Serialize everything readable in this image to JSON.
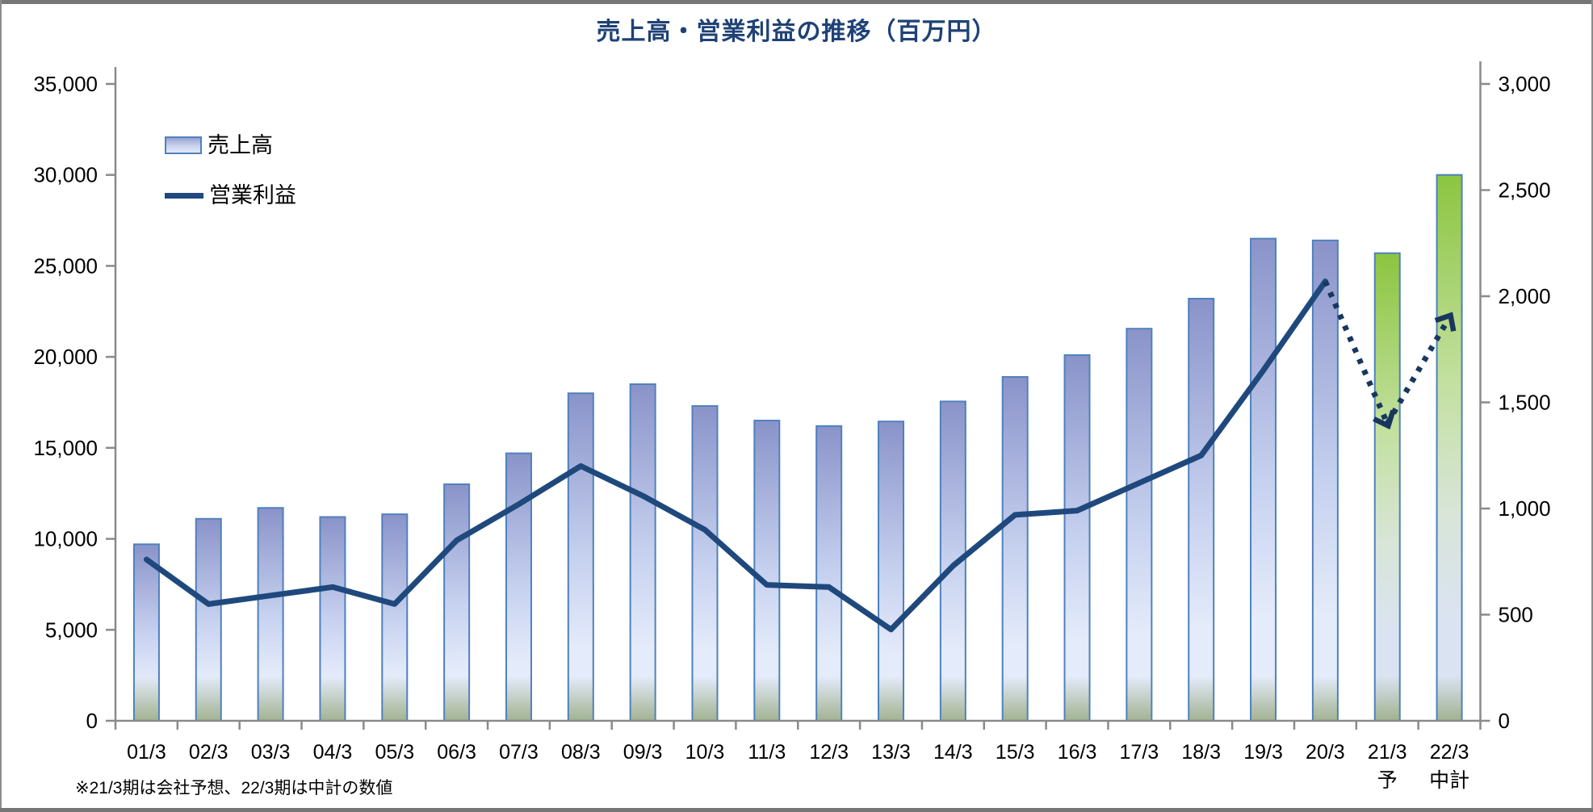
{
  "window": {
    "title": "売上高・営業利益の推移（百万円）"
  },
  "legend": {
    "revenue": "売上高",
    "profit": "営業利益"
  },
  "footnote": "※21/3期は会社予想、22/3期は中計の数値",
  "colors": {
    "title": "#1F4276",
    "axis": "#8A8A8A",
    "bar_border": "#4F81BD",
    "bar_top_blue": "#8A93C9",
    "bar_mid_blue": "#C6D1EF",
    "bar_low_blue": "#E4EBFA",
    "bar_top_green": "#8CC540",
    "bar_mid_green": "#C3E0A0",
    "bar_low_green": "#DAE3F2",
    "bar_bottom_olive": "#9AAC85",
    "line": "#1F497D",
    "forecast_arrow": "#17375E"
  },
  "chart_data": {
    "type": "bar",
    "subtype": "combo-bar-line-dual-axis",
    "title": "売上高・営業利益の推移（百万円）",
    "grid": false,
    "legend_position": "top-left-inside",
    "categories": [
      "01/3",
      "02/3",
      "03/3",
      "04/3",
      "05/3",
      "06/3",
      "07/3",
      "08/3",
      "09/3",
      "10/3",
      "11/3",
      "12/3",
      "13/3",
      "14/3",
      "15/3",
      "16/3",
      "17/3",
      "18/3",
      "19/3",
      "20/3",
      "21/3",
      "22/3"
    ],
    "category_sublabels": [
      "",
      "",
      "",
      "",
      "",
      "",
      "",
      "",
      "",
      "",
      "",
      "",
      "",
      "",
      "",
      "",
      "",
      "",
      "",
      "",
      "予",
      "中計"
    ],
    "series": [
      {
        "name": "売上高",
        "type": "bar",
        "axis": "left",
        "values": [
          9700,
          11100,
          11700,
          11200,
          11350,
          13000,
          14700,
          18000,
          18500,
          17300,
          16500,
          16200,
          16450,
          17550,
          18900,
          20100,
          21550,
          23200,
          26500,
          26400,
          25700,
          30000
        ],
        "bar_style": [
          "blue",
          "blue",
          "blue",
          "blue",
          "blue",
          "blue",
          "blue",
          "blue",
          "blue",
          "blue",
          "blue",
          "blue",
          "blue",
          "blue",
          "blue",
          "blue",
          "blue",
          "blue",
          "blue",
          "blue",
          "green",
          "green"
        ]
      },
      {
        "name": "営業利益",
        "type": "line",
        "axis": "right",
        "values": [
          760,
          550,
          590,
          630,
          550,
          850,
          1020,
          1200,
          1060,
          900,
          640,
          630,
          430,
          730,
          970,
          990,
          1120,
          1250,
          1650,
          2070,
          1400,
          1900
        ],
        "solid_through_index": 19,
        "forecast_note": "dotted arrows from 20/3 down to 21/3 (予) then up to 22/3 (中計)"
      }
    ],
    "left_axis": {
      "min": 0,
      "max": 35000,
      "tick_step": 5000,
      "tick_labels": [
        "0",
        "5,000",
        "10,000",
        "15,000",
        "20,000",
        "25,000",
        "30,000",
        "35,000"
      ]
    },
    "right_axis": {
      "min": 0,
      "max": 3000,
      "tick_step": 500,
      "tick_labels": [
        "0",
        "500",
        "1,000",
        "1,500",
        "2,000",
        "2,500",
        "3,000"
      ]
    }
  }
}
